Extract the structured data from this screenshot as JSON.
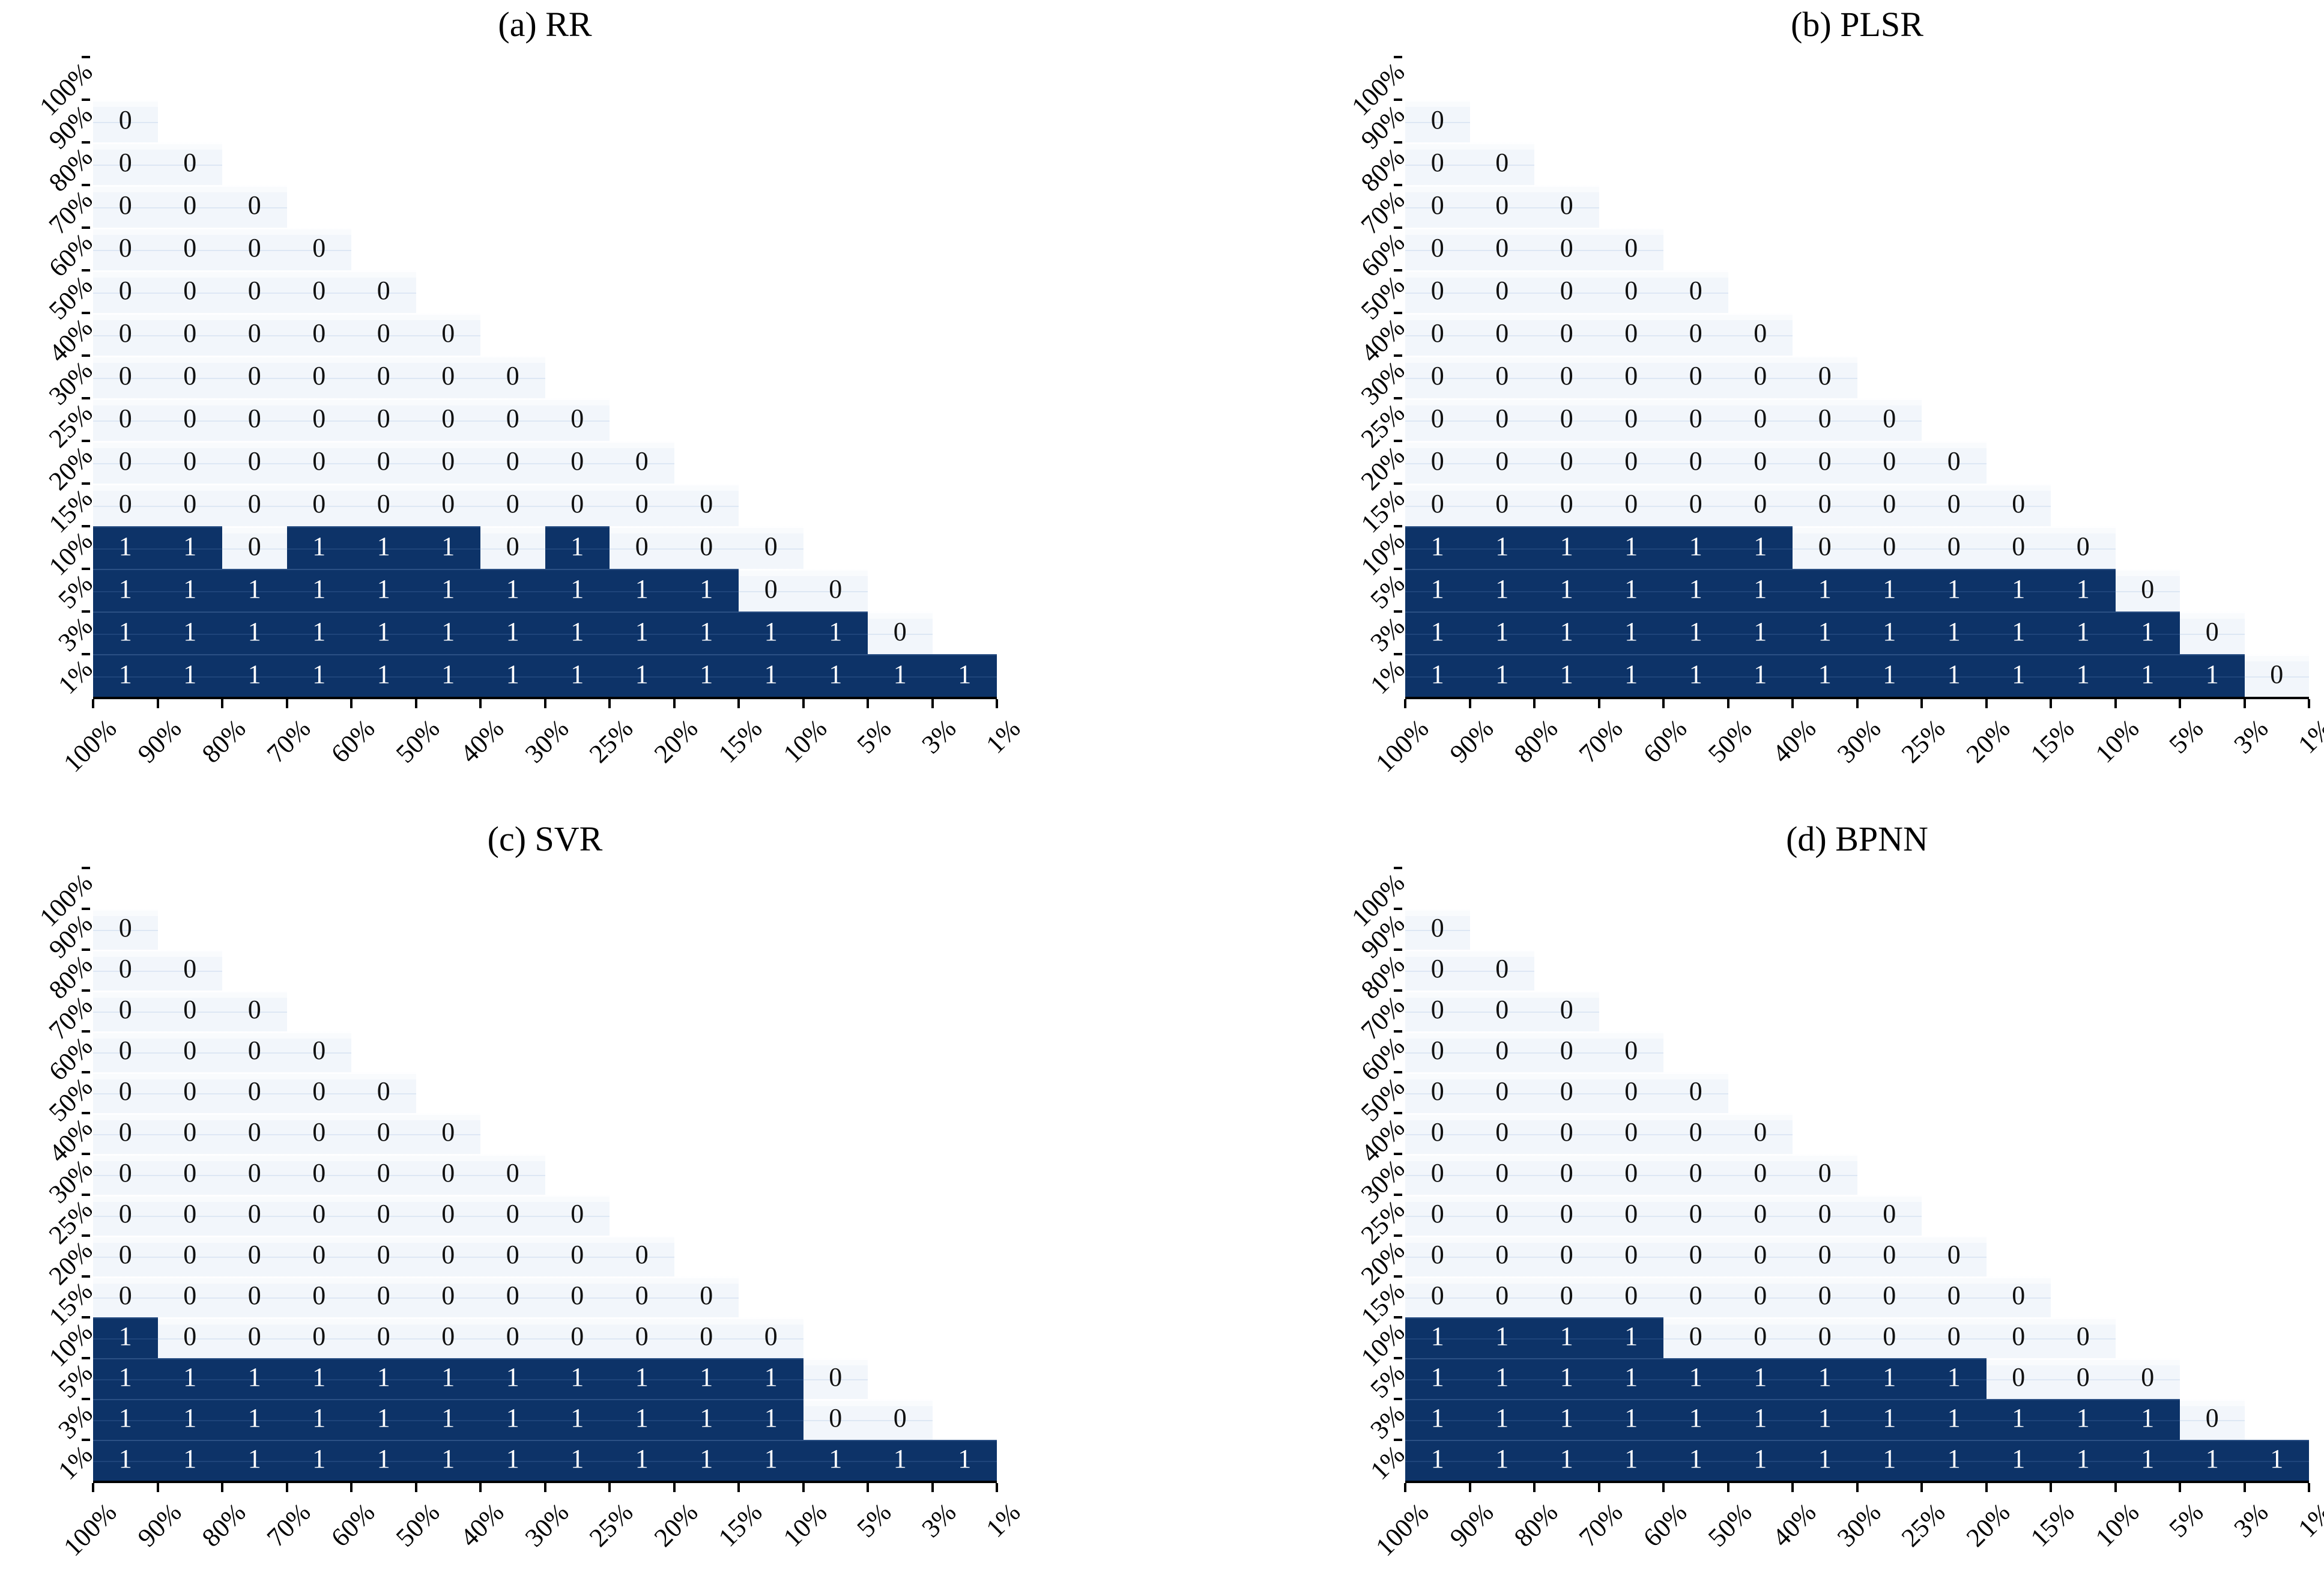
{
  "chart_data": {
    "type": "heatmap",
    "categories": [
      "100%",
      "90%",
      "80%",
      "70%",
      "60%",
      "50%",
      "40%",
      "30%",
      "25%",
      "20%",
      "15%",
      "10%",
      "5%",
      "3%",
      "1%"
    ],
    "cell_values": [
      0,
      1
    ],
    "layout": {
      "shape": "strict-lower-triangle",
      "grid": false,
      "legend": false,
      "x_tick_label_rotation_deg": 45,
      "y_tick_label_rotation_deg": 45
    },
    "colors": {
      "value_1_fill": "#0d3368",
      "value_0_fill": "#f2f6fb",
      "value_1_text": "#ffffff",
      "value_0_text": "#111111",
      "axis": "#000000"
    },
    "panels": [
      {
        "id": "a",
        "title": "(a) RR",
        "rows": [
          [],
          [
            0
          ],
          [
            0,
            0
          ],
          [
            0,
            0,
            0
          ],
          [
            0,
            0,
            0,
            0
          ],
          [
            0,
            0,
            0,
            0,
            0
          ],
          [
            0,
            0,
            0,
            0,
            0,
            0
          ],
          [
            0,
            0,
            0,
            0,
            0,
            0,
            0
          ],
          [
            0,
            0,
            0,
            0,
            0,
            0,
            0,
            0
          ],
          [
            0,
            0,
            0,
            0,
            0,
            0,
            0,
            0,
            0
          ],
          [
            0,
            0,
            0,
            0,
            0,
            0,
            0,
            0,
            0,
            0
          ],
          [
            1,
            1,
            0,
            1,
            1,
            1,
            0,
            1,
            0,
            0,
            0
          ],
          [
            1,
            1,
            1,
            1,
            1,
            1,
            1,
            1,
            1,
            1,
            0,
            0
          ],
          [
            1,
            1,
            1,
            1,
            1,
            1,
            1,
            1,
            1,
            1,
            1,
            1,
            0
          ],
          [
            1,
            1,
            1,
            1,
            1,
            1,
            1,
            1,
            1,
            1,
            1,
            1,
            1,
            1
          ]
        ]
      },
      {
        "id": "b",
        "title": "(b) PLSR",
        "rows": [
          [],
          [
            0
          ],
          [
            0,
            0
          ],
          [
            0,
            0,
            0
          ],
          [
            0,
            0,
            0,
            0
          ],
          [
            0,
            0,
            0,
            0,
            0
          ],
          [
            0,
            0,
            0,
            0,
            0,
            0
          ],
          [
            0,
            0,
            0,
            0,
            0,
            0,
            0
          ],
          [
            0,
            0,
            0,
            0,
            0,
            0,
            0,
            0
          ],
          [
            0,
            0,
            0,
            0,
            0,
            0,
            0,
            0,
            0
          ],
          [
            0,
            0,
            0,
            0,
            0,
            0,
            0,
            0,
            0,
            0
          ],
          [
            1,
            1,
            1,
            1,
            1,
            1,
            0,
            0,
            0,
            0,
            0
          ],
          [
            1,
            1,
            1,
            1,
            1,
            1,
            1,
            1,
            1,
            1,
            1,
            0
          ],
          [
            1,
            1,
            1,
            1,
            1,
            1,
            1,
            1,
            1,
            1,
            1,
            1,
            0
          ],
          [
            1,
            1,
            1,
            1,
            1,
            1,
            1,
            1,
            1,
            1,
            1,
            1,
            1,
            0
          ]
        ]
      },
      {
        "id": "c",
        "title": "(c) SVR",
        "rows": [
          [],
          [
            0
          ],
          [
            0,
            0
          ],
          [
            0,
            0,
            0
          ],
          [
            0,
            0,
            0,
            0
          ],
          [
            0,
            0,
            0,
            0,
            0
          ],
          [
            0,
            0,
            0,
            0,
            0,
            0
          ],
          [
            0,
            0,
            0,
            0,
            0,
            0,
            0
          ],
          [
            0,
            0,
            0,
            0,
            0,
            0,
            0,
            0
          ],
          [
            0,
            0,
            0,
            0,
            0,
            0,
            0,
            0,
            0
          ],
          [
            0,
            0,
            0,
            0,
            0,
            0,
            0,
            0,
            0,
            0
          ],
          [
            1,
            0,
            0,
            0,
            0,
            0,
            0,
            0,
            0,
            0,
            0
          ],
          [
            1,
            1,
            1,
            1,
            1,
            1,
            1,
            1,
            1,
            1,
            1,
            0
          ],
          [
            1,
            1,
            1,
            1,
            1,
            1,
            1,
            1,
            1,
            1,
            1,
            0,
            0
          ],
          [
            1,
            1,
            1,
            1,
            1,
            1,
            1,
            1,
            1,
            1,
            1,
            1,
            1,
            1
          ]
        ]
      },
      {
        "id": "d",
        "title": "(d) BPNN",
        "rows": [
          [],
          [
            0
          ],
          [
            0,
            0
          ],
          [
            0,
            0,
            0
          ],
          [
            0,
            0,
            0,
            0
          ],
          [
            0,
            0,
            0,
            0,
            0
          ],
          [
            0,
            0,
            0,
            0,
            0,
            0
          ],
          [
            0,
            0,
            0,
            0,
            0,
            0,
            0
          ],
          [
            0,
            0,
            0,
            0,
            0,
            0,
            0,
            0
          ],
          [
            0,
            0,
            0,
            0,
            0,
            0,
            0,
            0,
            0
          ],
          [
            0,
            0,
            0,
            0,
            0,
            0,
            0,
            0,
            0,
            0
          ],
          [
            1,
            1,
            1,
            1,
            0,
            0,
            0,
            0,
            0,
            0,
            0
          ],
          [
            1,
            1,
            1,
            1,
            1,
            1,
            1,
            1,
            1,
            0,
            0,
            0
          ],
          [
            1,
            1,
            1,
            1,
            1,
            1,
            1,
            1,
            1,
            1,
            1,
            1,
            0
          ],
          [
            1,
            1,
            1,
            1,
            1,
            1,
            1,
            1,
            1,
            1,
            1,
            1,
            1,
            1
          ]
        ]
      }
    ]
  }
}
